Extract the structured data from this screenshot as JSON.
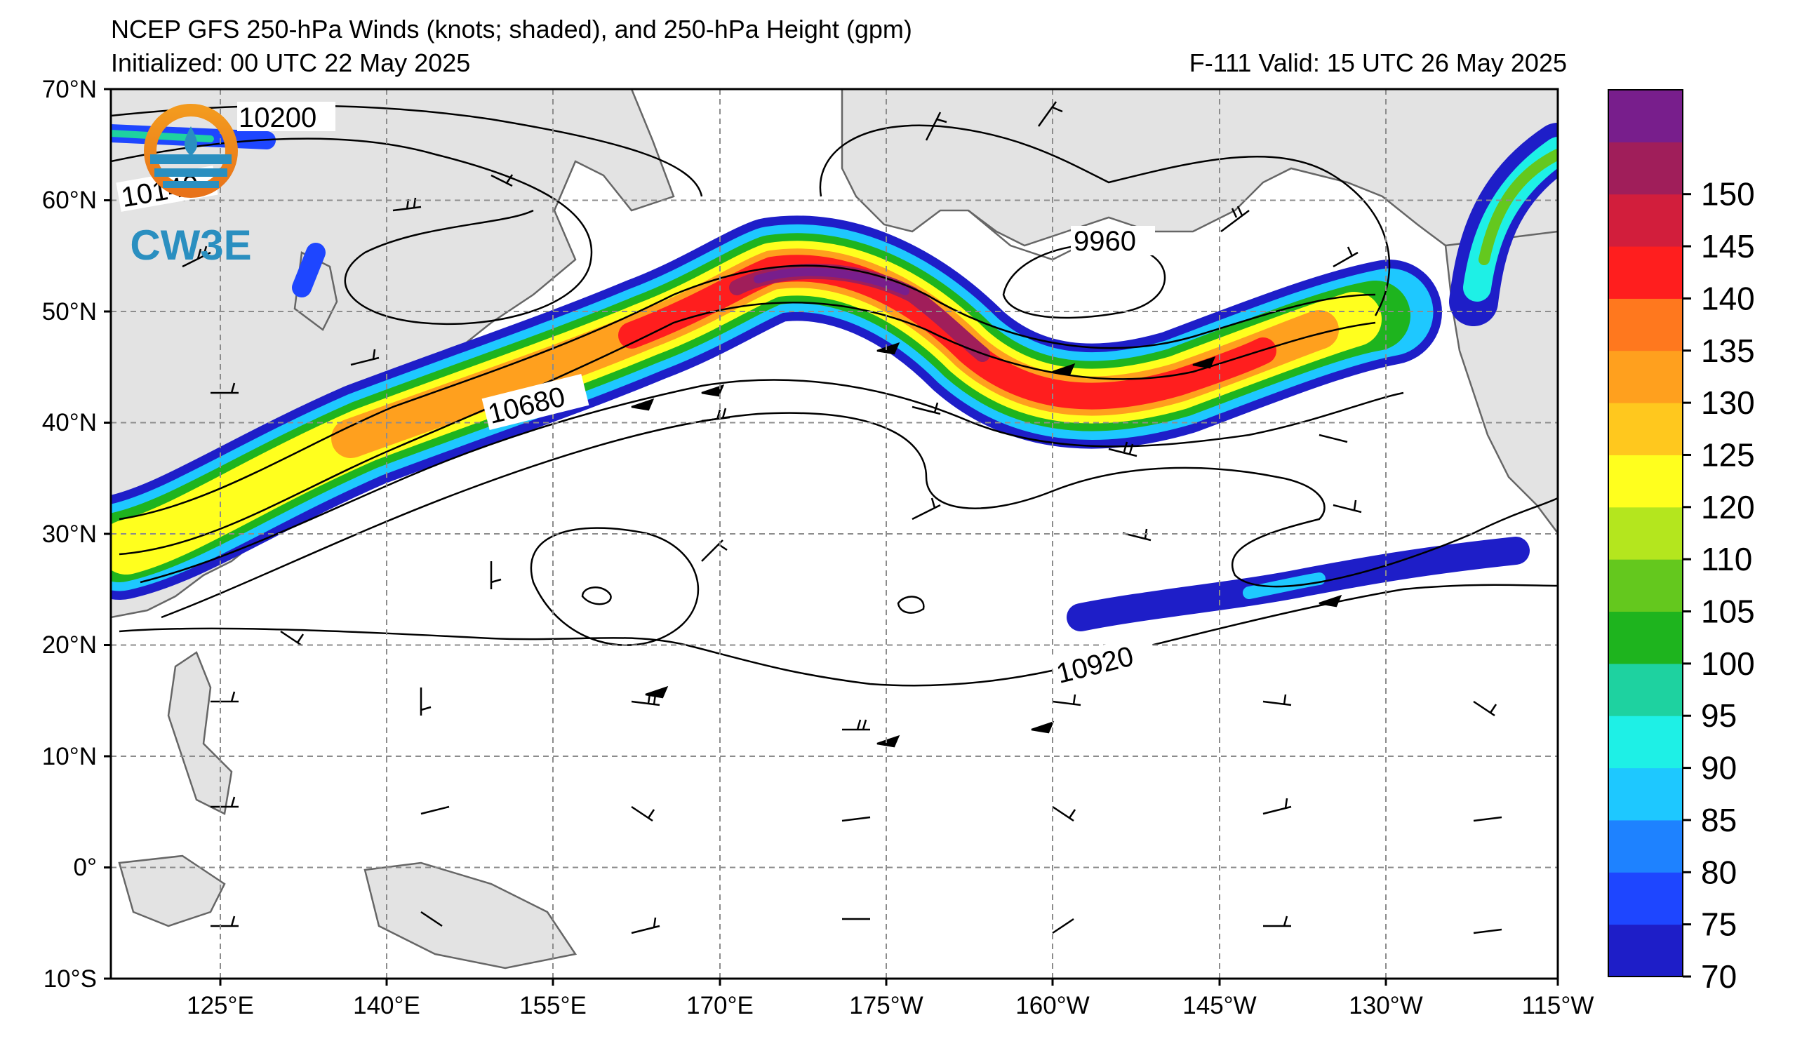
{
  "header": {
    "title": "NCEP GFS 250-hPa Winds (knots; shaded), and 250-hPa Height (gpm)",
    "initialized": "Initialized: 00 UTC 22 May 2025",
    "valid": "F-111  Valid: 15 UTC 26 May 2025"
  },
  "logo": {
    "text": "CW3E",
    "icon": "cw3e-logo-icon",
    "color": "#2a8fc0",
    "accent": "#f39a1e"
  },
  "map": {
    "lat_labels": [
      "70°N",
      "60°N",
      "50°N",
      "40°N",
      "30°N",
      "20°N",
      "10°N",
      "0°",
      "10°S"
    ],
    "lon_labels": [
      "125°E",
      "140°E",
      "155°E",
      "170°E",
      "175°W",
      "160°W",
      "145°W",
      "130°W",
      "115°W"
    ],
    "lat_range": [
      -10,
      70
    ],
    "lon_range_east": [
      110,
      245
    ],
    "contour_labels": [
      "10200",
      "10140",
      "9960",
      "10680",
      "10920"
    ],
    "land_color": "#e3e3e3",
    "grid": "dashed gray"
  },
  "colorbar": {
    "levels": [
      "70",
      "75",
      "80",
      "85",
      "90",
      "95",
      "100",
      "105",
      "110",
      "120",
      "125",
      "130",
      "135",
      "140",
      "145",
      "150"
    ],
    "colors": [
      "#1e1ec8",
      "#1e46ff",
      "#1e82ff",
      "#1ec8ff",
      "#1ef0e6",
      "#1ed2a0",
      "#1eb41e",
      "#64c81e",
      "#b4e61e",
      "#ffff1e",
      "#ffc81e",
      "#ffa01e",
      "#ff781e",
      "#ff1e1e",
      "#d21e3c",
      "#a01e5a",
      "#781e8c"
    ]
  }
}
